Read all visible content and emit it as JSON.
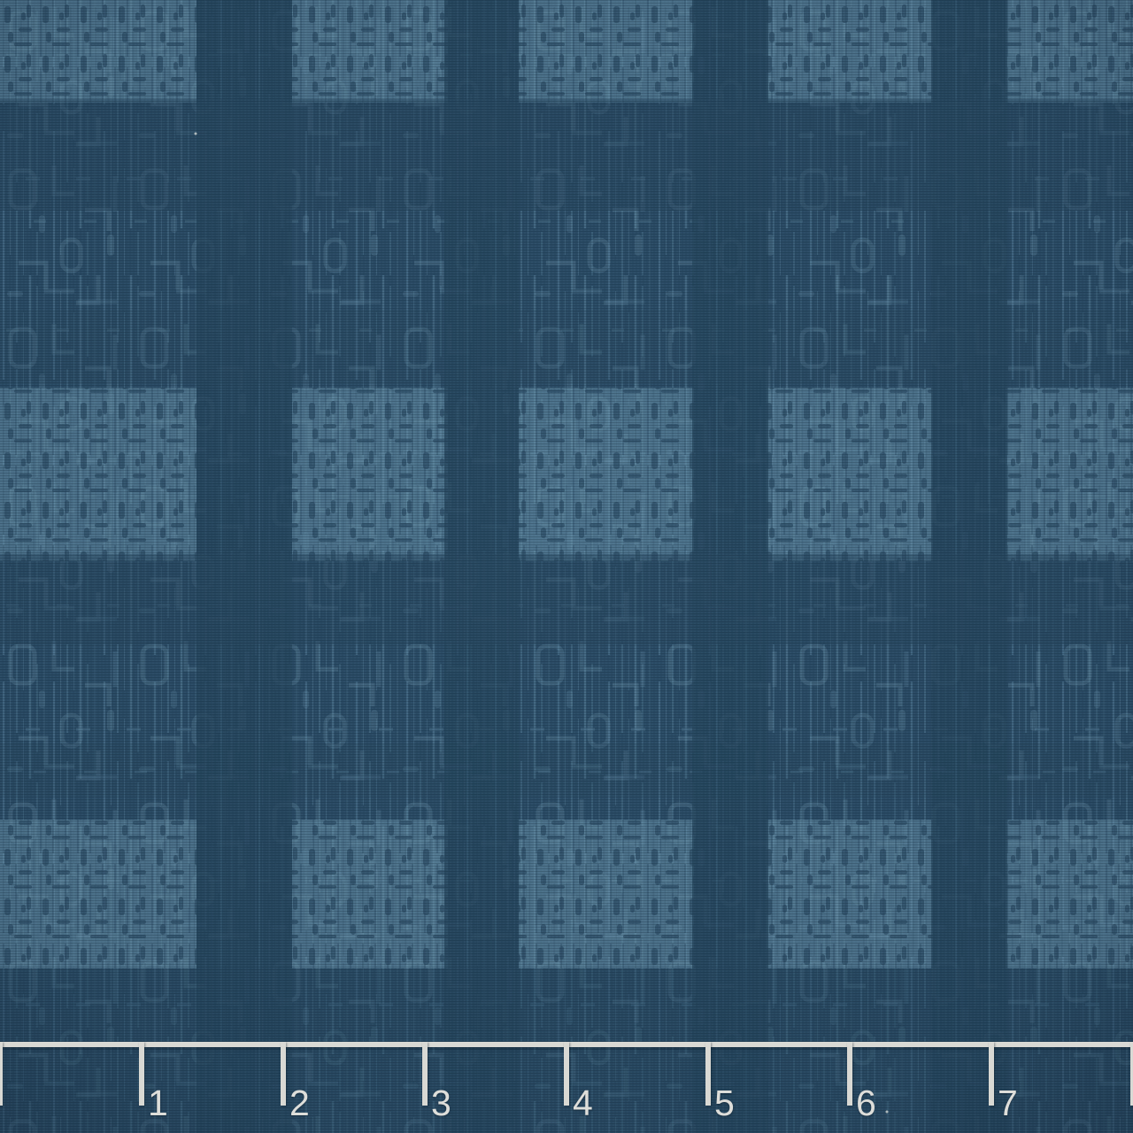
{
  "photo": {
    "subject": "blue circuit-maze plaid fabric swatch",
    "fabric": {
      "base_color": "#2b4c66",
      "pattern_light_color": "#6d97af",
      "pattern_mid_color": "#5d87a1",
      "band_dark_color": "#27475f",
      "motif": "circuit-maze plaid weave"
    }
  },
  "ruler": {
    "color": "#d9d9d4",
    "unit_labels": [
      "1",
      "2",
      "3",
      "4",
      "5",
      "6",
      "7"
    ]
  }
}
